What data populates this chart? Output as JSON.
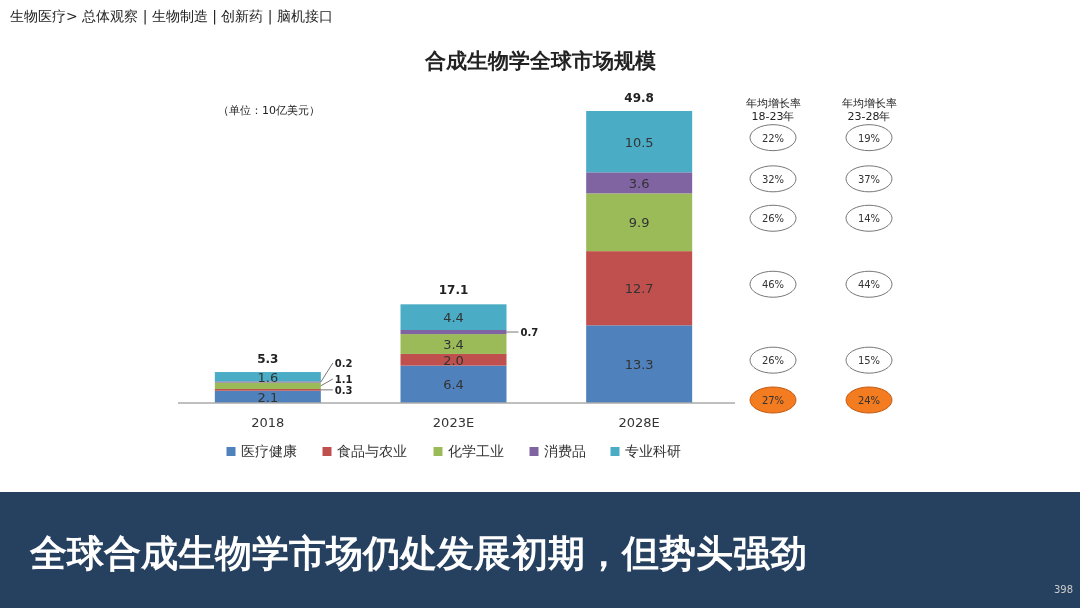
{
  "chart_data": [
    {
      "type": "bar",
      "title": "合成生物学全球市场规模",
      "subtitle": "全球合成生物学市场仍处发展初期，但势头强劲",
      "categories": [
        "2018",
        "2023E",
        "2028E"
      ],
      "stacked": true,
      "data_labels": true,
      "totals": [
        "5.3",
        "17.1",
        "49.8"
      ],
      "legend": "bottom",
      "series": [
        {
          "name": "医疗健康",
          "color": "#4f81bd",
          "values": [
            2.1,
            6.4,
            13.3
          ],
          "value_labels": [
            "2.1",
            "6.4",
            "13.3"
          ]
        },
        {
          "name": "食品与农业",
          "color": "#c0504d",
          "values": [
            0.3,
            2.0,
            12.7
          ],
          "value_labels": [
            "0.3",
            "2.0",
            "12.7"
          ]
        },
        {
          "name": "化学工业",
          "color": "#9bbb59",
          "values": [
            1.1,
            3.4,
            9.9
          ],
          "value_labels": [
            "1.1",
            "3.4",
            "9.9"
          ]
        },
        {
          "name": "消费品",
          "color": "#8064a2",
          "values": [
            0.2,
            0.7,
            3.6
          ],
          "value_labels": [
            "0.2",
            "0.7",
            "3.6"
          ]
        },
        {
          "name": "专业科研",
          "color": "#4bacc6",
          "values": [
            1.6,
            4.4,
            10.5
          ],
          "value_labels": [
            "1.6",
            "4.4",
            "10.5"
          ]
        }
      ],
      "annotations": [
        "（单位：10亿美元）",
        "生物医疗> 总体观察 | 生物制造 | 创新药 | 脑机接口",
        "398"
      ]
    },
    {
      "type": "other",
      "annotations": [
        "年均增长率\n18-23年",
        "年均增长率\n23-28年",
        "22%",
        "19%",
        "32%",
        "37%",
        "26%",
        "14%",
        "46%",
        "44%",
        "26%",
        "15%",
        "27%",
        "24%"
      ]
    }
  ]
}
